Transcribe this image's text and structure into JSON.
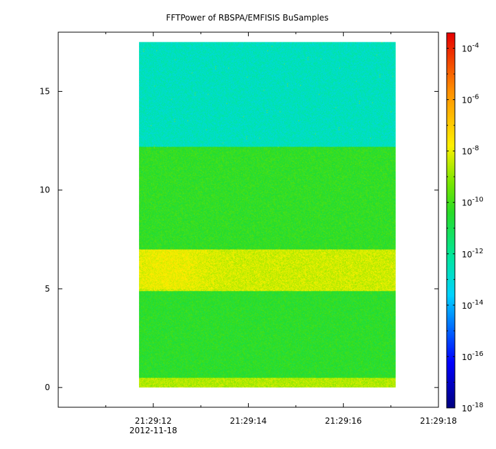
{
  "chart_data": {
    "type": "heatmap",
    "title": "FFTPower of RBSPA/EMFISIS  BuSamples",
    "xlabel": "",
    "ylabel": "",
    "x_range_seconds": [
      "21:29:10",
      "21:29:18"
    ],
    "x_ticks": [
      {
        "label": "21:29:12",
        "sublabel": "2012-11-18",
        "t": "21:29:12"
      },
      {
        "label": "21:29:14",
        "sublabel": "",
        "t": "21:29:14"
      },
      {
        "label": "21:29:16",
        "sublabel": "",
        "t": "21:29:16"
      },
      {
        "label": "21:29:18",
        "sublabel": "",
        "t": "21:29:18"
      }
    ],
    "x_minor_ticks": [
      "21:29:11",
      "21:29:13",
      "21:29:15",
      "21:29:17"
    ],
    "data_time_range": [
      "21:29:11.7",
      "21:29:17.1"
    ],
    "ylim": [
      -1,
      18
    ],
    "y_ticks": [
      0,
      5,
      10,
      15
    ],
    "data_y_range": [
      0,
      17.5
    ],
    "colorbar": {
      "scale": "log",
      "range_exp": [
        -18,
        -3.4
      ],
      "tick_exps": [
        -18,
        -16,
        -14,
        -12,
        -10,
        -8,
        -6,
        -4
      ],
      "tick_labels": [
        "10",
        "10",
        "10",
        "10",
        "10",
        "10",
        "10",
        "10"
      ],
      "tick_superscripts": [
        "-18",
        "-16",
        "-14",
        "-12",
        "-10",
        "-8",
        "-6",
        "-4"
      ],
      "colormap": "rainbow (dark blue to red)"
    },
    "bands": [
      {
        "y_range": [
          12.2,
          17.5
        ],
        "log_power": -12.6
      },
      {
        "y_range": [
          7.0,
          12.2
        ],
        "log_power": -10.3
      },
      {
        "y_range": [
          4.9,
          7.0
        ],
        "log_power": -8.3
      },
      {
        "y_range": [
          0.5,
          4.9
        ],
        "log_power": -10.4
      },
      {
        "y_range": [
          0.0,
          0.5
        ],
        "log_power": -8.6
      }
    ]
  }
}
